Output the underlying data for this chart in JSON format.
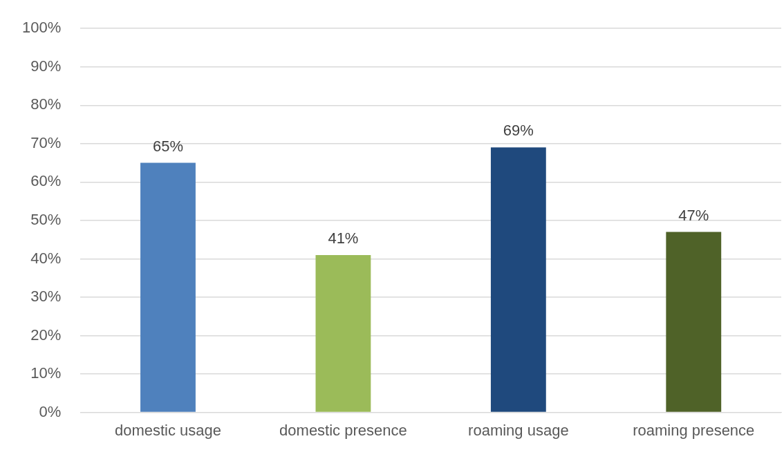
{
  "chart_data": {
    "type": "bar",
    "categories": [
      "domestic usage",
      "domestic presence",
      "roaming usage",
      "roaming presence"
    ],
    "values": [
      65,
      41,
      69,
      47
    ],
    "colors": [
      "#4f81bd",
      "#9bbb59",
      "#1f497d",
      "#4f6228"
    ],
    "value_labels": [
      "65%",
      "41%",
      "69%",
      "47%"
    ],
    "ylim": [
      0,
      100
    ],
    "yticks": [
      {
        "value": 0,
        "label": "0%"
      },
      {
        "value": 10,
        "label": "10%"
      },
      {
        "value": 20,
        "label": "20%"
      },
      {
        "value": 30,
        "label": "30%"
      },
      {
        "value": 40,
        "label": "40%"
      },
      {
        "value": 50,
        "label": "50%"
      },
      {
        "value": 60,
        "label": "60%"
      },
      {
        "value": 70,
        "label": "70%"
      },
      {
        "value": 80,
        "label": "80%"
      },
      {
        "value": 90,
        "label": "90%"
      },
      {
        "value": 100,
        "label": "100%"
      }
    ],
    "grid": "y",
    "legend": false
  }
}
